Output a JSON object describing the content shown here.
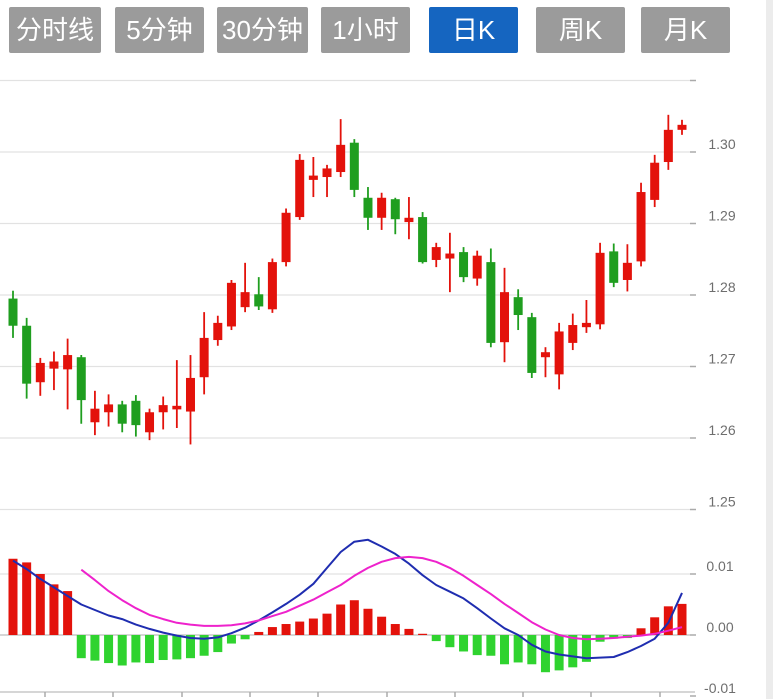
{
  "toolbar": {
    "tabs": [
      {
        "id": "tab-timeline",
        "label": "分时线",
        "active": false
      },
      {
        "id": "tab-5min",
        "label": "5分钟",
        "active": false
      },
      {
        "id": "tab-30min",
        "label": "30分钟",
        "active": false
      },
      {
        "id": "tab-1hour",
        "label": "1小时",
        "active": false
      },
      {
        "id": "tab-daily-k",
        "label": "日K",
        "active": true
      },
      {
        "id": "tab-weekly-k",
        "label": "周K",
        "active": false
      },
      {
        "id": "tab-monthly-k",
        "label": "月K",
        "active": false
      }
    ]
  },
  "colors": {
    "tab_gray": "#9b9b9b",
    "tab_active_blue": "#1565c0",
    "tab_text": "#ffffff",
    "candle_up_red": "#e3120b",
    "candle_down_green": "#1f9e1f",
    "macd_bar_up_red": "#e3120b",
    "macd_bar_down_green": "#2fd32f",
    "dif_line_blue": "#1f2db0",
    "dea_line_magenta": "#ee22cc",
    "gridline": "#e2e2e2",
    "zero_axis": "#c8c8c8",
    "tick": "#aaaaaa",
    "axis_text": "#6e6e6e"
  },
  "chart_data": {
    "type": "candlestick",
    "title": "Daily K-line with MACD indicator",
    "legend_position": "none",
    "grid": true,
    "price_axis": {
      "side": "right",
      "ylim": [
        1.25,
        1.31
      ],
      "grid_values": [
        1.31,
        1.3,
        1.29,
        1.28,
        1.27,
        1.26,
        1.25
      ],
      "tick_labels": [
        {
          "value": 1.3,
          "label": "1.30"
        },
        {
          "value": 1.29,
          "label": "1.29"
        },
        {
          "value": 1.28,
          "label": "1.28"
        },
        {
          "value": 1.27,
          "label": "1.27"
        },
        {
          "value": 1.26,
          "label": "1.26"
        },
        {
          "value": 1.25,
          "label": "1.25"
        }
      ]
    },
    "macd_axis": {
      "side": "right",
      "ylim": [
        -0.01,
        0.012
      ],
      "tick_labels": [
        {
          "value": 0.01,
          "label": "0.01"
        },
        {
          "value": 0.0,
          "label": "0.00"
        },
        {
          "value": -0.01,
          "label": "-0.01"
        }
      ]
    },
    "candles_ohlc": [
      [
        1.2795,
        1.2806,
        1.274,
        1.2757
      ],
      [
        1.2757,
        1.2768,
        1.2655,
        1.2676
      ],
      [
        1.2678,
        1.2712,
        1.2659,
        1.2705
      ],
      [
        1.2697,
        1.2721,
        1.2667,
        1.2707
      ],
      [
        1.2696,
        1.2739,
        1.264,
        1.2716
      ],
      [
        1.2713,
        1.2716,
        1.262,
        1.2653
      ],
      [
        1.2622,
        1.2666,
        1.2604,
        1.2641
      ],
      [
        1.2636,
        1.2661,
        1.2616,
        1.2647
      ],
      [
        1.2647,
        1.2652,
        1.2608,
        1.262
      ],
      [
        1.2652,
        1.266,
        1.2602,
        1.2618
      ],
      [
        1.2608,
        1.2641,
        1.2597,
        1.2636
      ],
      [
        1.2636,
        1.2658,
        1.2612,
        1.2646
      ],
      [
        1.264,
        1.2709,
        1.2614,
        1.2645
      ],
      [
        1.2637,
        1.2716,
        1.2591,
        1.2684
      ],
      [
        1.2685,
        1.2776,
        1.2661,
        1.274
      ],
      [
        1.2737,
        1.2771,
        1.2729,
        1.2761
      ],
      [
        1.2756,
        1.2821,
        1.2751,
        1.2817
      ],
      [
        1.2783,
        1.2845,
        1.2776,
        1.2804
      ],
      [
        1.2801,
        1.2825,
        1.2779,
        1.2784
      ],
      [
        1.278,
        1.2851,
        1.2775,
        1.2846
      ],
      [
        1.2846,
        1.2921,
        1.284,
        1.2915
      ],
      [
        1.2909,
        1.2997,
        1.2905,
        1.2989
      ],
      [
        1.2961,
        1.2993,
        1.2937,
        1.2967
      ],
      [
        1.2965,
        1.2982,
        1.2937,
        1.2977
      ],
      [
        1.2972,
        1.3046,
        1.2965,
        1.301
      ],
      [
        1.3013,
        1.3018,
        1.2937,
        1.2947
      ],
      [
        1.2936,
        1.2951,
        1.2891,
        1.2908
      ],
      [
        1.2908,
        1.2943,
        1.2891,
        1.2936
      ],
      [
        1.2934,
        1.2936,
        1.2885,
        1.2906
      ],
      [
        1.2902,
        1.2937,
        1.2878,
        1.2908
      ],
      [
        1.2909,
        1.2916,
        1.2844,
        1.2846
      ],
      [
        1.2849,
        1.2873,
        1.2839,
        1.2867
      ],
      [
        1.2851,
        1.2887,
        1.2804,
        1.2858
      ],
      [
        1.286,
        1.2867,
        1.2818,
        1.2825
      ],
      [
        1.2823,
        1.2862,
        1.2813,
        1.2855
      ],
      [
        1.2846,
        1.2865,
        1.2727,
        1.2733
      ],
      [
        1.2734,
        1.2838,
        1.2706,
        1.2804
      ],
      [
        1.2797,
        1.2808,
        1.2751,
        1.2772
      ],
      [
        1.2769,
        1.2775,
        1.2684,
        1.2691
      ],
      [
        1.2713,
        1.2727,
        1.2685,
        1.272
      ],
      [
        1.2689,
        1.2761,
        1.2668,
        1.2749
      ],
      [
        1.2733,
        1.2774,
        1.2723,
        1.2758
      ],
      [
        1.2755,
        1.2793,
        1.2747,
        1.2761
      ],
      [
        1.2759,
        1.2873,
        1.2752,
        1.2859
      ],
      [
        1.2861,
        1.2872,
        1.2811,
        1.2817
      ],
      [
        1.2821,
        1.2871,
        1.2805,
        1.2845
      ],
      [
        1.2847,
        1.2957,
        1.284,
        1.2944
      ],
      [
        1.2933,
        1.2996,
        1.2923,
        1.2985
      ],
      [
        1.2986,
        1.3052,
        1.2975,
        1.3031
      ],
      [
        1.3031,
        1.3045,
        1.3024,
        1.3038
      ]
    ],
    "macd": {
      "histogram": [
        0.0125,
        0.0119,
        0.01,
        0.0083,
        0.0072,
        -0.0038,
        -0.0042,
        -0.0046,
        -0.005,
        -0.0045,
        -0.0046,
        -0.0041,
        -0.004,
        -0.0038,
        -0.0034,
        -0.0028,
        -0.0014,
        -0.0007,
        0.0005,
        0.0013,
        0.0018,
        0.0022,
        0.0027,
        0.0035,
        0.005,
        0.0057,
        0.0043,
        0.003,
        0.0018,
        0.001,
        0.0002,
        -0.001,
        -0.002,
        -0.0027,
        -0.0033,
        -0.0034,
        -0.0048,
        -0.0045,
        -0.0048,
        -0.0061,
        -0.0058,
        -0.0053,
        -0.0044,
        -0.0011,
        -0.0006,
        -0.0005,
        0.0011,
        0.0029,
        0.0047,
        0.0051
      ],
      "dif": [
        0.0122,
        0.0108,
        0.0092,
        0.0078,
        0.0064,
        0.005,
        0.0041,
        0.0032,
        0.0026,
        0.0017,
        0.001,
        0.0004,
        -0.0001,
        -0.0005,
        -0.0006,
        -0.0004,
        0.0003,
        0.0012,
        0.0024,
        0.0037,
        0.0051,
        0.0066,
        0.0084,
        0.011,
        0.0136,
        0.0153,
        0.0156,
        0.0145,
        0.0133,
        0.0117,
        0.0098,
        0.0082,
        0.0071,
        0.006,
        0.0044,
        0.0027,
        0.0011,
        0.0,
        -0.0016,
        -0.0027,
        -0.0032,
        -0.0035,
        -0.0038,
        -0.0037,
        -0.0036,
        -0.0028,
        -0.0018,
        -0.0006,
        0.002,
        0.0069
      ],
      "dea": [
        null,
        null,
        null,
        null,
        null,
        0.0107,
        0.009,
        0.0072,
        0.0057,
        0.0044,
        0.0033,
        0.0026,
        0.002,
        0.0017,
        0.0015,
        0.0015,
        0.0016,
        0.0019,
        0.0024,
        0.0031,
        0.0038,
        0.0048,
        0.0058,
        0.007,
        0.0082,
        0.0097,
        0.011,
        0.012,
        0.0126,
        0.0128,
        0.0126,
        0.012,
        0.011,
        0.0097,
        0.0082,
        0.0067,
        0.0051,
        0.0036,
        0.0021,
        0.0009,
        0.0,
        -0.0005,
        -0.0007,
        -0.0006,
        -0.0005,
        -0.0003,
        -0.0001,
        0.0002,
        0.0007,
        0.0013
      ]
    }
  }
}
